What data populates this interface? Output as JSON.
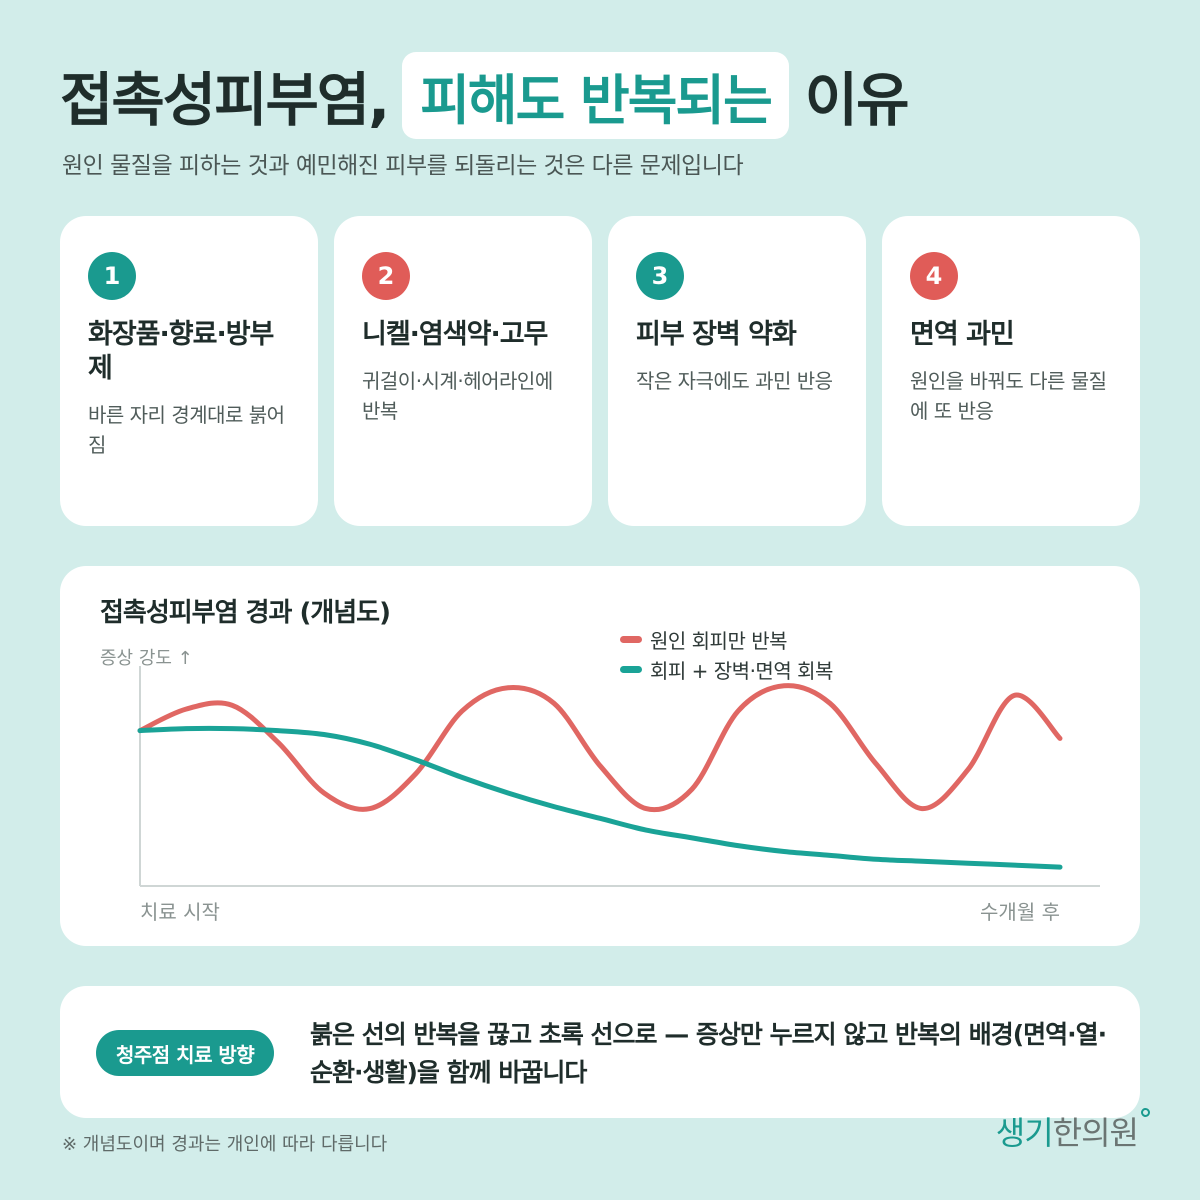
{
  "header": {
    "title_before": "접촉성피부염,",
    "title_highlight": "피해도 반복되는",
    "title_after": "이유",
    "subtitle": "원인 물질을 피하는 것과 예민해진 피부를 되돌리는 것은 다른 문제입니다"
  },
  "cards": [
    {
      "number": "1",
      "title": "화장품·향료·방부제",
      "desc": "바른 자리 경계대로 붉어짐",
      "color": "#1a9a8f"
    },
    {
      "number": "2",
      "title": "니켈·염색약·고무",
      "desc": "귀걸이·시계·헤어라인에 반복",
      "color": "#e05c58"
    },
    {
      "number": "3",
      "title": "피부 장벽 약화",
      "desc": "작은 자극에도 과민 반응",
      "color": "#1a9a8f"
    },
    {
      "number": "4",
      "title": "면역 과민",
      "desc": "원인을 바꿔도 다른 물질에 또 반응",
      "color": "#e05c58"
    }
  ],
  "chart_data": {
    "type": "line",
    "title": "접촉성피부염 경과 (개념도)",
    "ylabel": "증상 강도 ↑",
    "x_start_label": "치료 시작",
    "x_end_label": "수개월 후",
    "x": [
      0,
      0.05,
      0.1,
      0.15,
      0.2,
      0.25,
      0.3,
      0.35,
      0.4,
      0.45,
      0.5,
      0.55,
      0.6,
      0.65,
      0.7,
      0.75,
      0.8,
      0.85,
      0.9,
      0.95,
      1.0
    ],
    "series": [
      {
        "name": "원인 회피만 반복",
        "color": "#e06763",
        "values": [
          0.72,
          0.83,
          0.85,
          0.66,
          0.4,
          0.32,
          0.5,
          0.82,
          0.94,
          0.86,
          0.54,
          0.32,
          0.42,
          0.82,
          0.95,
          0.86,
          0.55,
          0.32,
          0.52,
          0.9,
          0.68
        ]
      },
      {
        "name": "회피 + 장벽·면역 회복",
        "color": "#1aa397",
        "values": [
          0.72,
          0.73,
          0.73,
          0.72,
          0.7,
          0.65,
          0.57,
          0.48,
          0.4,
          0.33,
          0.27,
          0.21,
          0.17,
          0.13,
          0.1,
          0.08,
          0.06,
          0.05,
          0.04,
          0.03,
          0.02
        ]
      }
    ],
    "ylim": [
      0,
      1
    ],
    "grid": false,
    "legend_position": "top-right"
  },
  "bottom": {
    "pill_label": "청주점 치료 방향",
    "text": "붉은 선의 반복을 끊고 초록 선으로 — 증상만 누르지 않고 반복의 배경(면역·열·순환·생활)을 함께 바꿉니다"
  },
  "footnote": "※ 개념도이며 경과는 개인에 따라 다릅니다",
  "logo": {
    "part1": "생기",
    "part2": "한의원"
  }
}
